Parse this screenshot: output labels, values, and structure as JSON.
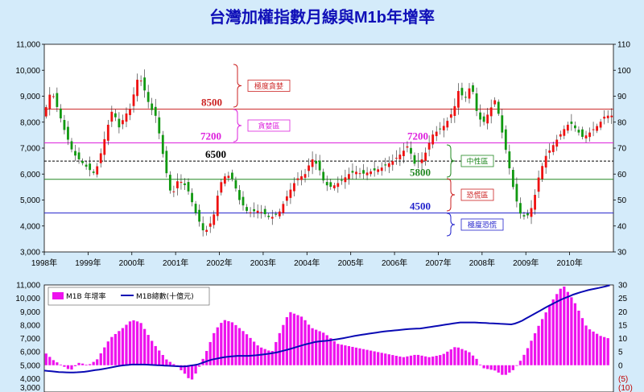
{
  "title": "台灣加權指數月線與M1b年增率",
  "colors": {
    "background": "#d4ebfa",
    "candle_up": "#ee1111",
    "candle_down": "#119911",
    "m1b_bar": "#ee11ee",
    "m1b_line": "#0a0ab4",
    "level_8500": "#cc2222",
    "level_7200": "#dd22dd",
    "level_6500": "#000000",
    "level_5800": "#228822",
    "level_4500": "#2222cc"
  },
  "chart_data": [
    {
      "type": "candlestick",
      "x_tick_labels": [
        "1998年",
        "1999年",
        "2000年",
        "2001年",
        "2002年",
        "2003年",
        "2004年",
        "2005年",
        "2006年",
        "2007年",
        "2008年",
        "2009年",
        "2010年"
      ],
      "x_range": [
        1998.0,
        2011.0
      ],
      "y_left_ticks": [
        "11,000",
        "10,000",
        "9,000",
        "8,000",
        "7,000",
        "6,000",
        "5,000",
        "4,000",
        "3,000"
      ],
      "y_left_range": [
        3000,
        11000
      ],
      "y_right_ticks": [
        "110",
        "100",
        "90",
        "80",
        "70",
        "60",
        "50",
        "40",
        "30"
      ],
      "y_right_range": [
        30,
        110
      ],
      "levels": [
        {
          "value": 8500,
          "label": "8500",
          "zone": "極度貪婪",
          "style": "solid"
        },
        {
          "value": 7200,
          "label": "7200",
          "zone": "貪婪區",
          "style": "solid"
        },
        {
          "value": 6500,
          "label": "6500",
          "zone": "",
          "style": "dashed"
        },
        {
          "value": 5800,
          "label": "5800",
          "zone": "中性區",
          "style": "solid"
        },
        {
          "value": 4500,
          "label": "4500",
          "zone": "恐慌區",
          "style": "solid"
        }
      ],
      "extra_label": "7200",
      "bottom_zone": "極度恐慌",
      "anchors": [
        [
          1998.0,
          8100
        ],
        [
          1998.2,
          9250
        ],
        [
          1998.35,
          8500
        ],
        [
          1998.5,
          7700
        ],
        [
          1998.7,
          6800
        ],
        [
          1998.9,
          6450
        ],
        [
          1999.05,
          6200
        ],
        [
          1999.2,
          6000
        ],
        [
          1999.35,
          6900
        ],
        [
          1999.5,
          7900
        ],
        [
          1999.6,
          8500
        ],
        [
          1999.75,
          7800
        ],
        [
          1999.9,
          8300
        ],
        [
          2000.05,
          8600
        ],
        [
          2000.1,
          9300
        ],
        [
          2000.2,
          9800
        ],
        [
          2000.3,
          9400
        ],
        [
          2000.45,
          8600
        ],
        [
          2000.6,
          8200
        ],
        [
          2000.8,
          6300
        ],
        [
          2000.95,
          5100
        ],
        [
          2001.1,
          5800
        ],
        [
          2001.3,
          5500
        ],
        [
          2001.5,
          4500
        ],
        [
          2001.7,
          3700
        ],
        [
          2001.9,
          4300
        ],
        [
          2002.05,
          5600
        ],
        [
          2002.2,
          6000
        ],
        [
          2002.35,
          5800
        ],
        [
          2002.5,
          5000
        ],
        [
          2002.7,
          4500
        ],
        [
          2002.9,
          4600
        ],
        [
          2003.05,
          4500
        ],
        [
          2003.2,
          4300
        ],
        [
          2003.4,
          4500
        ],
        [
          2003.6,
          5200
        ],
        [
          2003.8,
          5800
        ],
        [
          2004.0,
          6000
        ],
        [
          2004.15,
          6600
        ],
        [
          2004.3,
          6300
        ],
        [
          2004.45,
          5600
        ],
        [
          2004.6,
          5500
        ],
        [
          2004.8,
          5700
        ],
        [
          2005.0,
          6000
        ],
        [
          2005.15,
          6100
        ],
        [
          2005.3,
          6000
        ],
        [
          2005.5,
          6100
        ],
        [
          2005.7,
          6200
        ],
        [
          2005.9,
          6400
        ],
        [
          2006.0,
          6500
        ],
        [
          2006.2,
          6800
        ],
        [
          2006.35,
          7100
        ],
        [
          2006.5,
          6400
        ],
        [
          2006.7,
          6600
        ],
        [
          2006.9,
          7500
        ],
        [
          2007.05,
          7700
        ],
        [
          2007.2,
          7900
        ],
        [
          2007.4,
          8500
        ],
        [
          2007.5,
          9200
        ],
        [
          2007.65,
          8900
        ],
        [
          2007.8,
          9500
        ],
        [
          2007.9,
          8500
        ],
        [
          2008.05,
          7900
        ],
        [
          2008.2,
          8400
        ],
        [
          2008.35,
          8900
        ],
        [
          2008.5,
          7600
        ],
        [
          2008.6,
          6800
        ],
        [
          2008.75,
          5500
        ],
        [
          2008.9,
          4500
        ],
        [
          2009.05,
          4300
        ],
        [
          2009.2,
          4800
        ],
        [
          2009.35,
          6000
        ],
        [
          2009.5,
          6700
        ],
        [
          2009.7,
          7200
        ],
        [
          2009.9,
          7700
        ],
        [
          2010.05,
          8000
        ],
        [
          2010.2,
          7700
        ],
        [
          2010.35,
          7400
        ],
        [
          2010.5,
          7600
        ],
        [
          2010.7,
          7900
        ],
        [
          2010.85,
          8250
        ],
        [
          2010.95,
          8250
        ]
      ]
    },
    {
      "type": "bar+line",
      "legend": [
        {
          "label": "M1B 年增率",
          "kind": "bar"
        },
        {
          "label": "M1B總數(十億元)",
          "kind": "line"
        }
      ],
      "y_left_ticks": [
        "11,000",
        "10,000",
        "9,000",
        "8,000",
        "7,000",
        "6,000",
        "5,000",
        "4,000",
        "3,000"
      ],
      "y_left_range": [
        3000,
        11000
      ],
      "y_right_ticks": [
        "30",
        "25",
        "20",
        "15",
        "10",
        "5",
        "0",
        "(5)",
        "(10)"
      ],
      "y_right_range": [
        -10,
        30
      ],
      "growth_anchors": [
        [
          1998.0,
          5
        ],
        [
          1998.2,
          2
        ],
        [
          1998.4,
          0
        ],
        [
          1998.6,
          -2
        ],
        [
          1998.8,
          1
        ],
        [
          1999.0,
          0
        ],
        [
          1999.2,
          2
        ],
        [
          1999.5,
          10
        ],
        [
          1999.8,
          14
        ],
        [
          2000.0,
          17
        ],
        [
          2000.2,
          16
        ],
        [
          2000.5,
          8
        ],
        [
          2000.8,
          2
        ],
        [
          2001.0,
          0
        ],
        [
          2001.2,
          -3
        ],
        [
          2001.35,
          -6
        ],
        [
          2001.5,
          -2
        ],
        [
          2001.7,
          5
        ],
        [
          2001.9,
          13
        ],
        [
          2002.1,
          17
        ],
        [
          2002.3,
          16
        ],
        [
          2002.6,
          12
        ],
        [
          2002.9,
          7
        ],
        [
          2003.2,
          5
        ],
        [
          2003.4,
          13
        ],
        [
          2003.6,
          20
        ],
        [
          2003.9,
          18
        ],
        [
          2004.1,
          14
        ],
        [
          2004.4,
          12
        ],
        [
          2004.7,
          8
        ],
        [
          2005.0,
          7
        ],
        [
          2005.3,
          6
        ],
        [
          2005.6,
          5
        ],
        [
          2005.9,
          4
        ],
        [
          2006.2,
          3
        ],
        [
          2006.5,
          4
        ],
        [
          2006.8,
          3
        ],
        [
          2007.1,
          4
        ],
        [
          2007.4,
          7
        ],
        [
          2007.7,
          5
        ],
        [
          2007.9,
          2
        ],
        [
          2008.0,
          -1
        ],
        [
          2008.3,
          -2
        ],
        [
          2008.5,
          -4
        ],
        [
          2008.7,
          -2
        ],
        [
          2008.85,
          1
        ],
        [
          2009.0,
          5
        ],
        [
          2009.3,
          15
        ],
        [
          2009.6,
          24
        ],
        [
          2009.85,
          30
        ],
        [
          2010.1,
          24
        ],
        [
          2010.4,
          14
        ],
        [
          2010.7,
          11
        ],
        [
          2010.9,
          10
        ]
      ],
      "total_anchors": [
        [
          1998.0,
          4600
        ],
        [
          1998.3,
          4500
        ],
        [
          1998.6,
          4450
        ],
        [
          1998.9,
          4500
        ],
        [
          1999.1,
          4600
        ],
        [
          1999.4,
          4750
        ],
        [
          1999.7,
          4950
        ],
        [
          2000.0,
          5050
        ],
        [
          2000.3,
          5050
        ],
        [
          2000.6,
          5000
        ],
        [
          2000.9,
          4950
        ],
        [
          2001.2,
          4900
        ],
        [
          2001.5,
          5050
        ],
        [
          2001.8,
          5400
        ],
        [
          2002.1,
          5600
        ],
        [
          2002.4,
          5700
        ],
        [
          2002.7,
          5700
        ],
        [
          2003.0,
          5800
        ],
        [
          2003.3,
          5950
        ],
        [
          2003.6,
          6200
        ],
        [
          2003.9,
          6500
        ],
        [
          2004.2,
          6750
        ],
        [
          2004.5,
          6850
        ],
        [
          2004.8,
          7000
        ],
        [
          2005.1,
          7200
        ],
        [
          2005.4,
          7350
        ],
        [
          2005.7,
          7500
        ],
        [
          2006.0,
          7600
        ],
        [
          2006.3,
          7700
        ],
        [
          2006.6,
          7750
        ],
        [
          2006.9,
          7900
        ],
        [
          2007.2,
          8050
        ],
        [
          2007.5,
          8200
        ],
        [
          2007.8,
          8200
        ],
        [
          2008.1,
          8150
        ],
        [
          2008.4,
          8100
        ],
        [
          2008.7,
          8050
        ],
        [
          2008.9,
          8300
        ],
        [
          2009.2,
          8850
        ],
        [
          2009.5,
          9400
        ],
        [
          2009.8,
          9900
        ],
        [
          2010.1,
          10300
        ],
        [
          2010.4,
          10600
        ],
        [
          2010.7,
          10800
        ],
        [
          2010.95,
          11000
        ]
      ]
    }
  ]
}
